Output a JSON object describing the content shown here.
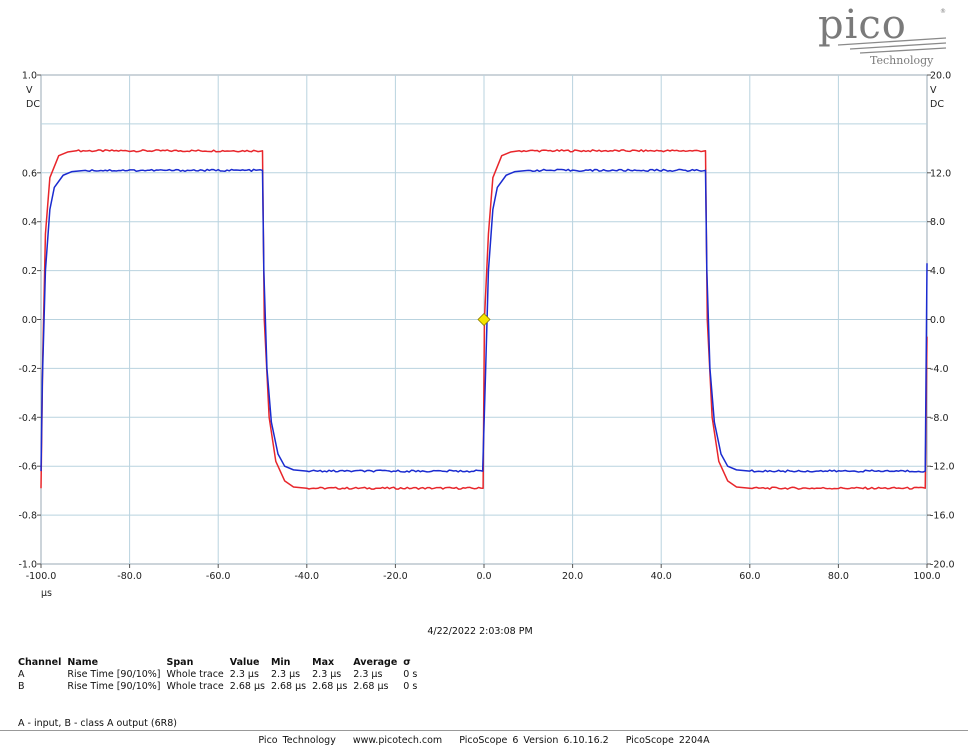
{
  "logo": {
    "brand": "pico",
    "sub": "Technology"
  },
  "chart_data": {
    "type": "line",
    "xlim": [
      -100,
      100
    ],
    "xlabel": "µs",
    "x_ticks": [
      "-100.0",
      "-80.0",
      "-60.0",
      "-40.0",
      "-20.0",
      "0.0",
      "20.0",
      "40.0",
      "60.0",
      "80.0",
      "100.0"
    ],
    "left_axis": {
      "unit_lines": [
        "V",
        "DC"
      ],
      "ylim": [
        -1.0,
        1.0
      ],
      "ticks": [
        "1.0",
        "0.6",
        "0.4",
        "0.2",
        "0.0",
        "-0.2",
        "-0.4",
        "-0.6",
        "-0.8",
        "-1.0"
      ],
      "tick_values": [
        1.0,
        0.6,
        0.4,
        0.2,
        0.0,
        -0.2,
        -0.4,
        -0.6,
        -0.8,
        -1.0
      ]
    },
    "right_axis": {
      "unit_lines": [
        "V",
        "DC"
      ],
      "ylim": [
        -20.0,
        20.0
      ],
      "ticks": [
        "20.0",
        "12.0",
        "8.0",
        "4.0",
        "0.0",
        "-4.0",
        "-8.0",
        "-12.0",
        "-16.0",
        "-20.0"
      ],
      "tick_values": [
        20.0,
        12.0,
        8.0,
        4.0,
        0.0,
        -4.0,
        -8.0,
        -12.0,
        -16.0,
        -20.0
      ]
    },
    "grid": true,
    "trigger_marker": {
      "x": 0,
      "y": 0,
      "color": "#f5e400"
    },
    "series": [
      {
        "color": "#e8262b",
        "high": 0.69,
        "low": -0.69,
        "points": [
          [
            -100,
            -0.69
          ],
          [
            -99.6,
            -0.15
          ],
          [
            -99,
            0.35
          ],
          [
            -98,
            0.58
          ],
          [
            -96,
            0.67
          ],
          [
            -94,
            0.685
          ],
          [
            -92,
            0.69
          ],
          [
            -50,
            0.69
          ],
          [
            -49.6,
            0.0
          ],
          [
            -48.5,
            -0.4
          ],
          [
            -47,
            -0.58
          ],
          [
            -45,
            -0.66
          ],
          [
            -43,
            -0.685
          ],
          [
            -40,
            -0.69
          ],
          [
            -0.2,
            -0.69
          ],
          [
            0.1,
            0.0
          ],
          [
            1,
            0.35
          ],
          [
            2,
            0.58
          ],
          [
            4,
            0.67
          ],
          [
            6,
            0.685
          ],
          [
            8,
            0.69
          ],
          [
            50,
            0.69
          ],
          [
            50.4,
            0.0
          ],
          [
            51.5,
            -0.4
          ],
          [
            53,
            -0.58
          ],
          [
            55,
            -0.66
          ],
          [
            57,
            -0.685
          ],
          [
            60,
            -0.69
          ],
          [
            99.6,
            -0.69
          ],
          [
            100,
            -0.07
          ]
        ]
      },
      {
        "color": "#1a2bd0",
        "high": 0.61,
        "low": -0.62,
        "points": [
          [
            -100,
            -0.62
          ],
          [
            -99.7,
            -0.25
          ],
          [
            -99,
            0.2
          ],
          [
            -98,
            0.45
          ],
          [
            -97,
            0.54
          ],
          [
            -95,
            0.59
          ],
          [
            -93,
            0.605
          ],
          [
            -90,
            0.61
          ],
          [
            -50,
            0.61
          ],
          [
            -49.7,
            0.2
          ],
          [
            -49,
            -0.2
          ],
          [
            -48,
            -0.42
          ],
          [
            -46.5,
            -0.55
          ],
          [
            -45,
            -0.6
          ],
          [
            -43,
            -0.615
          ],
          [
            -40,
            -0.62
          ],
          [
            -0.3,
            -0.62
          ],
          [
            0.3,
            -0.25
          ],
          [
            1,
            0.2
          ],
          [
            2,
            0.45
          ],
          [
            3,
            0.54
          ],
          [
            5,
            0.59
          ],
          [
            7,
            0.605
          ],
          [
            10,
            0.61
          ],
          [
            50,
            0.61
          ],
          [
            50.3,
            0.2
          ],
          [
            51,
            -0.2
          ],
          [
            52,
            -0.42
          ],
          [
            53.5,
            -0.55
          ],
          [
            55,
            -0.6
          ],
          [
            57,
            -0.615
          ],
          [
            60,
            -0.62
          ],
          [
            99.6,
            -0.62
          ],
          [
            100,
            0.23
          ]
        ]
      }
    ]
  },
  "timestamp": "4/22/2022 2:03:08 PM",
  "measurements": {
    "headers": [
      "Channel",
      "Name",
      "Span",
      "Value",
      "Min",
      "Max",
      "Average",
      "σ"
    ],
    "rows": [
      [
        "A",
        "Rise Time  [90/10%]",
        "Whole trace",
        "2.3 µs",
        "2.3 µs",
        "2.3 µs",
        "2.3 µs",
        "0 s"
      ],
      [
        "B",
        "Rise Time  [90/10%]",
        "Whole trace",
        "2.68 µs",
        "2.68 µs",
        "2.68 µs",
        "2.68 µs",
        "0 s"
      ]
    ]
  },
  "note": "A - input, B - class A output (6R8)",
  "footer": [
    "Pico Technology",
    "www.picotech.com",
    "PicoScope 6 Version 6.10.16.2",
    "PicoScope 2204A"
  ]
}
